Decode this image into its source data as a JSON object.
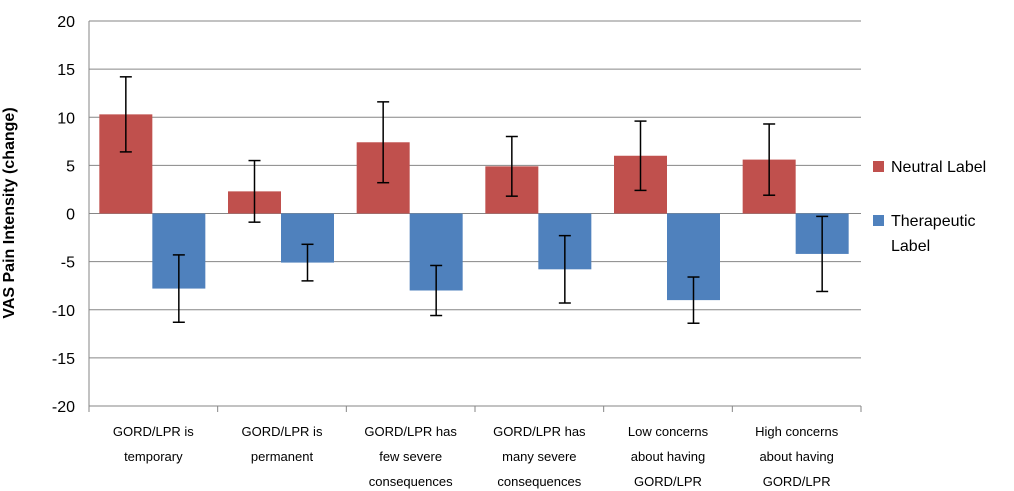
{
  "chart_data": {
    "type": "bar",
    "title": "",
    "xlabel": "",
    "ylabel": "VAS Pain Intensity (change)",
    "ylim": [
      -20,
      20
    ],
    "yticks": [
      20,
      15,
      10,
      5,
      0,
      -5,
      -10,
      -15,
      -20
    ],
    "grid": true,
    "legend_position": "right",
    "categories": [
      [
        "GORD/LPR is",
        "temporary"
      ],
      [
        "GORD/LPR is",
        "permanent"
      ],
      [
        "GORD/LPR has",
        "few severe",
        "consequences"
      ],
      [
        "GORD/LPR has",
        "many severe",
        "consequences"
      ],
      [
        "Low concerns",
        "about having",
        "GORD/LPR"
      ],
      [
        "High concerns",
        "about having",
        "GORD/LPR"
      ]
    ],
    "series": [
      {
        "name": "Neutral Label",
        "legend_lines": [
          "Neutral Label"
        ],
        "color": "#c0504d",
        "values": [
          10.3,
          2.3,
          7.4,
          4.9,
          6.0,
          5.6
        ],
        "errors": [
          3.9,
          3.2,
          4.2,
          3.1,
          3.6,
          3.7
        ]
      },
      {
        "name": "Therapeutic Label",
        "legend_lines": [
          "Therapeutic",
          "Label"
        ],
        "color": "#4f81bd",
        "values": [
          -7.8,
          -5.1,
          -8.0,
          -5.8,
          -9.0,
          -4.2
        ],
        "errors": [
          3.5,
          1.9,
          2.6,
          3.5,
          2.4,
          3.9
        ]
      }
    ]
  }
}
